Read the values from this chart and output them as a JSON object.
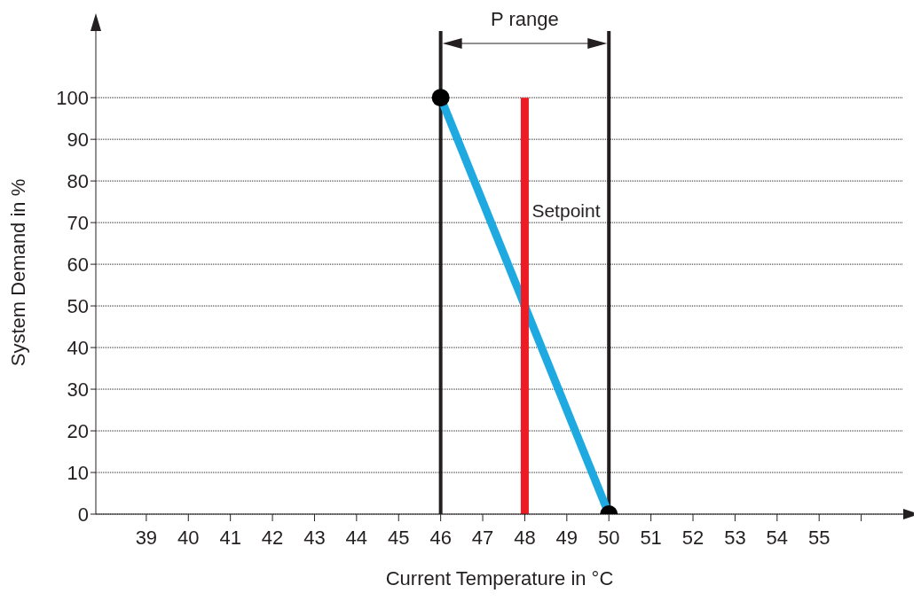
{
  "chart_data": {
    "type": "line",
    "xlabel": "Current Temperature in °C",
    "ylabel": "System Demand in %",
    "xlim": [
      37.8,
      57
    ],
    "xticks": [
      39,
      40,
      41,
      42,
      43,
      44,
      45,
      46,
      47,
      48,
      49,
      50,
      51,
      52,
      53,
      54,
      55,
      {
        "value": 56,
        "label": null
      }
    ],
    "ylim": [
      0,
      116
    ],
    "yticks": [
      0,
      10,
      20,
      30,
      40,
      50,
      60,
      70,
      80,
      90,
      100
    ],
    "grid": "y",
    "legend": false,
    "line_style": "solid",
    "series": [
      {
        "type": "line",
        "color": "#1fa9e1",
        "x": [
          46,
          50
        ],
        "values": [
          100,
          0
        ],
        "marker": "circle"
      },
      {
        "type": "line",
        "color": "#ed1c24",
        "x": [
          48,
          48
        ],
        "values": [
          0,
          100
        ],
        "marker": "none"
      }
    ],
    "ref_lines": [
      {
        "axis": "x",
        "value": 46,
        "color": "#231f20"
      },
      {
        "axis": "x",
        "value": 50,
        "color": "#231f20"
      }
    ],
    "annotations": [
      "P range",
      {
        "text": "Setpoint",
        "x": 48,
        "y": 73
      }
    ]
  }
}
